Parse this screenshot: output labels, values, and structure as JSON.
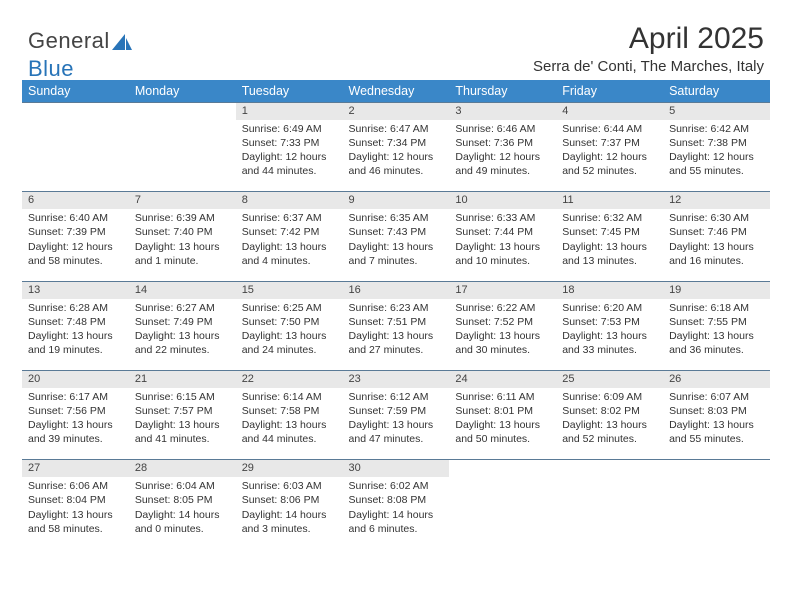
{
  "logo": {
    "text1": "General",
    "text2": "Blue"
  },
  "title": "April 2025",
  "subtitle": "Serra de' Conti, The Marches, Italy",
  "colors": {
    "header_bg": "#3a87c8",
    "header_fg": "#ffffff",
    "daynum_bg": "#e8e8e8",
    "row_border": "#5a7a96",
    "logo_blue": "#2874b8"
  },
  "weekdays": [
    "Sunday",
    "Monday",
    "Tuesday",
    "Wednesday",
    "Thursday",
    "Friday",
    "Saturday"
  ],
  "weeks": [
    [
      null,
      null,
      {
        "n": "1",
        "sr": "Sunrise: 6:49 AM",
        "ss": "Sunset: 7:33 PM",
        "dl1": "Daylight: 12 hours",
        "dl2": "and 44 minutes."
      },
      {
        "n": "2",
        "sr": "Sunrise: 6:47 AM",
        "ss": "Sunset: 7:34 PM",
        "dl1": "Daylight: 12 hours",
        "dl2": "and 46 minutes."
      },
      {
        "n": "3",
        "sr": "Sunrise: 6:46 AM",
        "ss": "Sunset: 7:36 PM",
        "dl1": "Daylight: 12 hours",
        "dl2": "and 49 minutes."
      },
      {
        "n": "4",
        "sr": "Sunrise: 6:44 AM",
        "ss": "Sunset: 7:37 PM",
        "dl1": "Daylight: 12 hours",
        "dl2": "and 52 minutes."
      },
      {
        "n": "5",
        "sr": "Sunrise: 6:42 AM",
        "ss": "Sunset: 7:38 PM",
        "dl1": "Daylight: 12 hours",
        "dl2": "and 55 minutes."
      }
    ],
    [
      {
        "n": "6",
        "sr": "Sunrise: 6:40 AM",
        "ss": "Sunset: 7:39 PM",
        "dl1": "Daylight: 12 hours",
        "dl2": "and 58 minutes."
      },
      {
        "n": "7",
        "sr": "Sunrise: 6:39 AM",
        "ss": "Sunset: 7:40 PM",
        "dl1": "Daylight: 13 hours",
        "dl2": "and 1 minute."
      },
      {
        "n": "8",
        "sr": "Sunrise: 6:37 AM",
        "ss": "Sunset: 7:42 PM",
        "dl1": "Daylight: 13 hours",
        "dl2": "and 4 minutes."
      },
      {
        "n": "9",
        "sr": "Sunrise: 6:35 AM",
        "ss": "Sunset: 7:43 PM",
        "dl1": "Daylight: 13 hours",
        "dl2": "and 7 minutes."
      },
      {
        "n": "10",
        "sr": "Sunrise: 6:33 AM",
        "ss": "Sunset: 7:44 PM",
        "dl1": "Daylight: 13 hours",
        "dl2": "and 10 minutes."
      },
      {
        "n": "11",
        "sr": "Sunrise: 6:32 AM",
        "ss": "Sunset: 7:45 PM",
        "dl1": "Daylight: 13 hours",
        "dl2": "and 13 minutes."
      },
      {
        "n": "12",
        "sr": "Sunrise: 6:30 AM",
        "ss": "Sunset: 7:46 PM",
        "dl1": "Daylight: 13 hours",
        "dl2": "and 16 minutes."
      }
    ],
    [
      {
        "n": "13",
        "sr": "Sunrise: 6:28 AM",
        "ss": "Sunset: 7:48 PM",
        "dl1": "Daylight: 13 hours",
        "dl2": "and 19 minutes."
      },
      {
        "n": "14",
        "sr": "Sunrise: 6:27 AM",
        "ss": "Sunset: 7:49 PM",
        "dl1": "Daylight: 13 hours",
        "dl2": "and 22 minutes."
      },
      {
        "n": "15",
        "sr": "Sunrise: 6:25 AM",
        "ss": "Sunset: 7:50 PM",
        "dl1": "Daylight: 13 hours",
        "dl2": "and 24 minutes."
      },
      {
        "n": "16",
        "sr": "Sunrise: 6:23 AM",
        "ss": "Sunset: 7:51 PM",
        "dl1": "Daylight: 13 hours",
        "dl2": "and 27 minutes."
      },
      {
        "n": "17",
        "sr": "Sunrise: 6:22 AM",
        "ss": "Sunset: 7:52 PM",
        "dl1": "Daylight: 13 hours",
        "dl2": "and 30 minutes."
      },
      {
        "n": "18",
        "sr": "Sunrise: 6:20 AM",
        "ss": "Sunset: 7:53 PM",
        "dl1": "Daylight: 13 hours",
        "dl2": "and 33 minutes."
      },
      {
        "n": "19",
        "sr": "Sunrise: 6:18 AM",
        "ss": "Sunset: 7:55 PM",
        "dl1": "Daylight: 13 hours",
        "dl2": "and 36 minutes."
      }
    ],
    [
      {
        "n": "20",
        "sr": "Sunrise: 6:17 AM",
        "ss": "Sunset: 7:56 PM",
        "dl1": "Daylight: 13 hours",
        "dl2": "and 39 minutes."
      },
      {
        "n": "21",
        "sr": "Sunrise: 6:15 AM",
        "ss": "Sunset: 7:57 PM",
        "dl1": "Daylight: 13 hours",
        "dl2": "and 41 minutes."
      },
      {
        "n": "22",
        "sr": "Sunrise: 6:14 AM",
        "ss": "Sunset: 7:58 PM",
        "dl1": "Daylight: 13 hours",
        "dl2": "and 44 minutes."
      },
      {
        "n": "23",
        "sr": "Sunrise: 6:12 AM",
        "ss": "Sunset: 7:59 PM",
        "dl1": "Daylight: 13 hours",
        "dl2": "and 47 minutes."
      },
      {
        "n": "24",
        "sr": "Sunrise: 6:11 AM",
        "ss": "Sunset: 8:01 PM",
        "dl1": "Daylight: 13 hours",
        "dl2": "and 50 minutes."
      },
      {
        "n": "25",
        "sr": "Sunrise: 6:09 AM",
        "ss": "Sunset: 8:02 PM",
        "dl1": "Daylight: 13 hours",
        "dl2": "and 52 minutes."
      },
      {
        "n": "26",
        "sr": "Sunrise: 6:07 AM",
        "ss": "Sunset: 8:03 PM",
        "dl1": "Daylight: 13 hours",
        "dl2": "and 55 minutes."
      }
    ],
    [
      {
        "n": "27",
        "sr": "Sunrise: 6:06 AM",
        "ss": "Sunset: 8:04 PM",
        "dl1": "Daylight: 13 hours",
        "dl2": "and 58 minutes."
      },
      {
        "n": "28",
        "sr": "Sunrise: 6:04 AM",
        "ss": "Sunset: 8:05 PM",
        "dl1": "Daylight: 14 hours",
        "dl2": "and 0 minutes."
      },
      {
        "n": "29",
        "sr": "Sunrise: 6:03 AM",
        "ss": "Sunset: 8:06 PM",
        "dl1": "Daylight: 14 hours",
        "dl2": "and 3 minutes."
      },
      {
        "n": "30",
        "sr": "Sunrise: 6:02 AM",
        "ss": "Sunset: 8:08 PM",
        "dl1": "Daylight: 14 hours",
        "dl2": "and 6 minutes."
      },
      null,
      null,
      null
    ]
  ]
}
